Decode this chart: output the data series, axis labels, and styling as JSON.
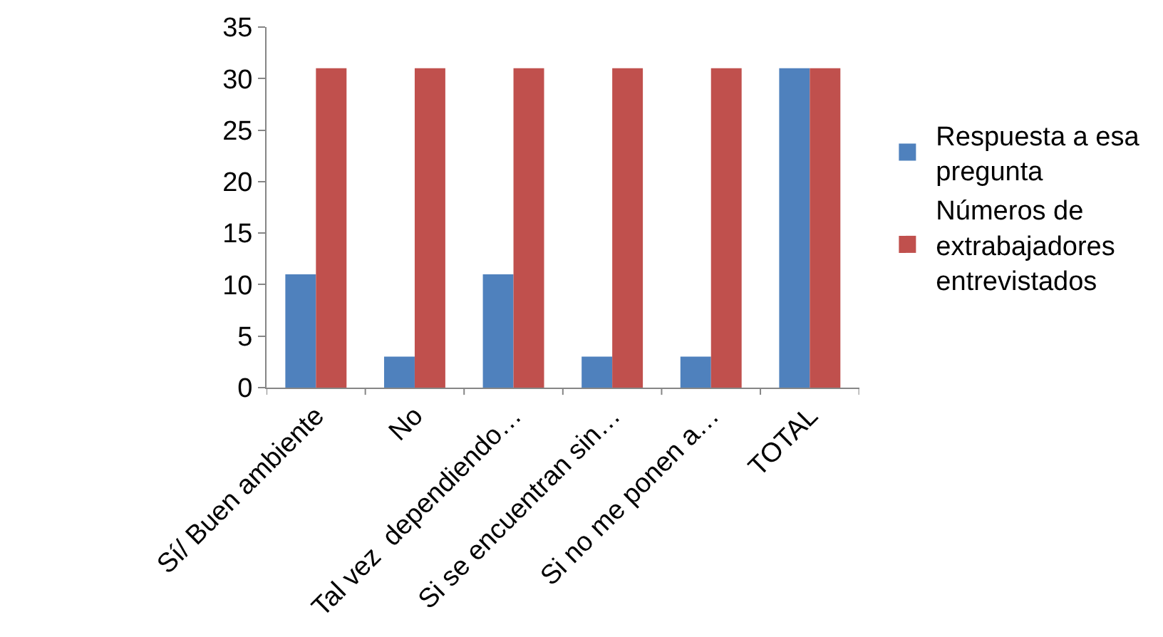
{
  "chart_data": {
    "type": "bar",
    "categories": [
      "Sí/ Buen ambiente",
      "No",
      "Tal vez  dependiendo…",
      "Si se encuentran sin…",
      "Si no me ponen a…",
      "TOTAL"
    ],
    "series": [
      {
        "name": "Respuesta a esa pregunta",
        "color": "#4f81bd",
        "values": [
          11,
          3,
          11,
          3,
          3,
          31
        ]
      },
      {
        "name": "Números de extrabajadores entrevistados",
        "color": "#c0504d",
        "values": [
          31,
          31,
          31,
          31,
          31,
          31
        ]
      }
    ],
    "ylim": [
      0,
      35
    ],
    "yticks": [
      0,
      5,
      10,
      15,
      20,
      25,
      30,
      35
    ],
    "legend": "right"
  }
}
